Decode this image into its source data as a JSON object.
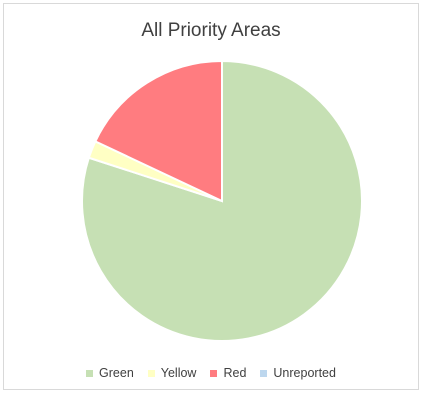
{
  "chart_data": {
    "type": "pie",
    "title": "All Priority Areas",
    "slices": [
      {
        "label": "Green",
        "value": 80,
        "color": "#c6e0b4"
      },
      {
        "label": "Yellow",
        "value": 2,
        "color": "#ffffc4"
      },
      {
        "label": "Red",
        "value": 18,
        "color": "#ff7c80"
      },
      {
        "label": "Unreported",
        "value": 0,
        "color": "#bdd7ee"
      }
    ],
    "legend_position": "bottom",
    "start_angle_deg": 0,
    "direction": "clockwise"
  }
}
